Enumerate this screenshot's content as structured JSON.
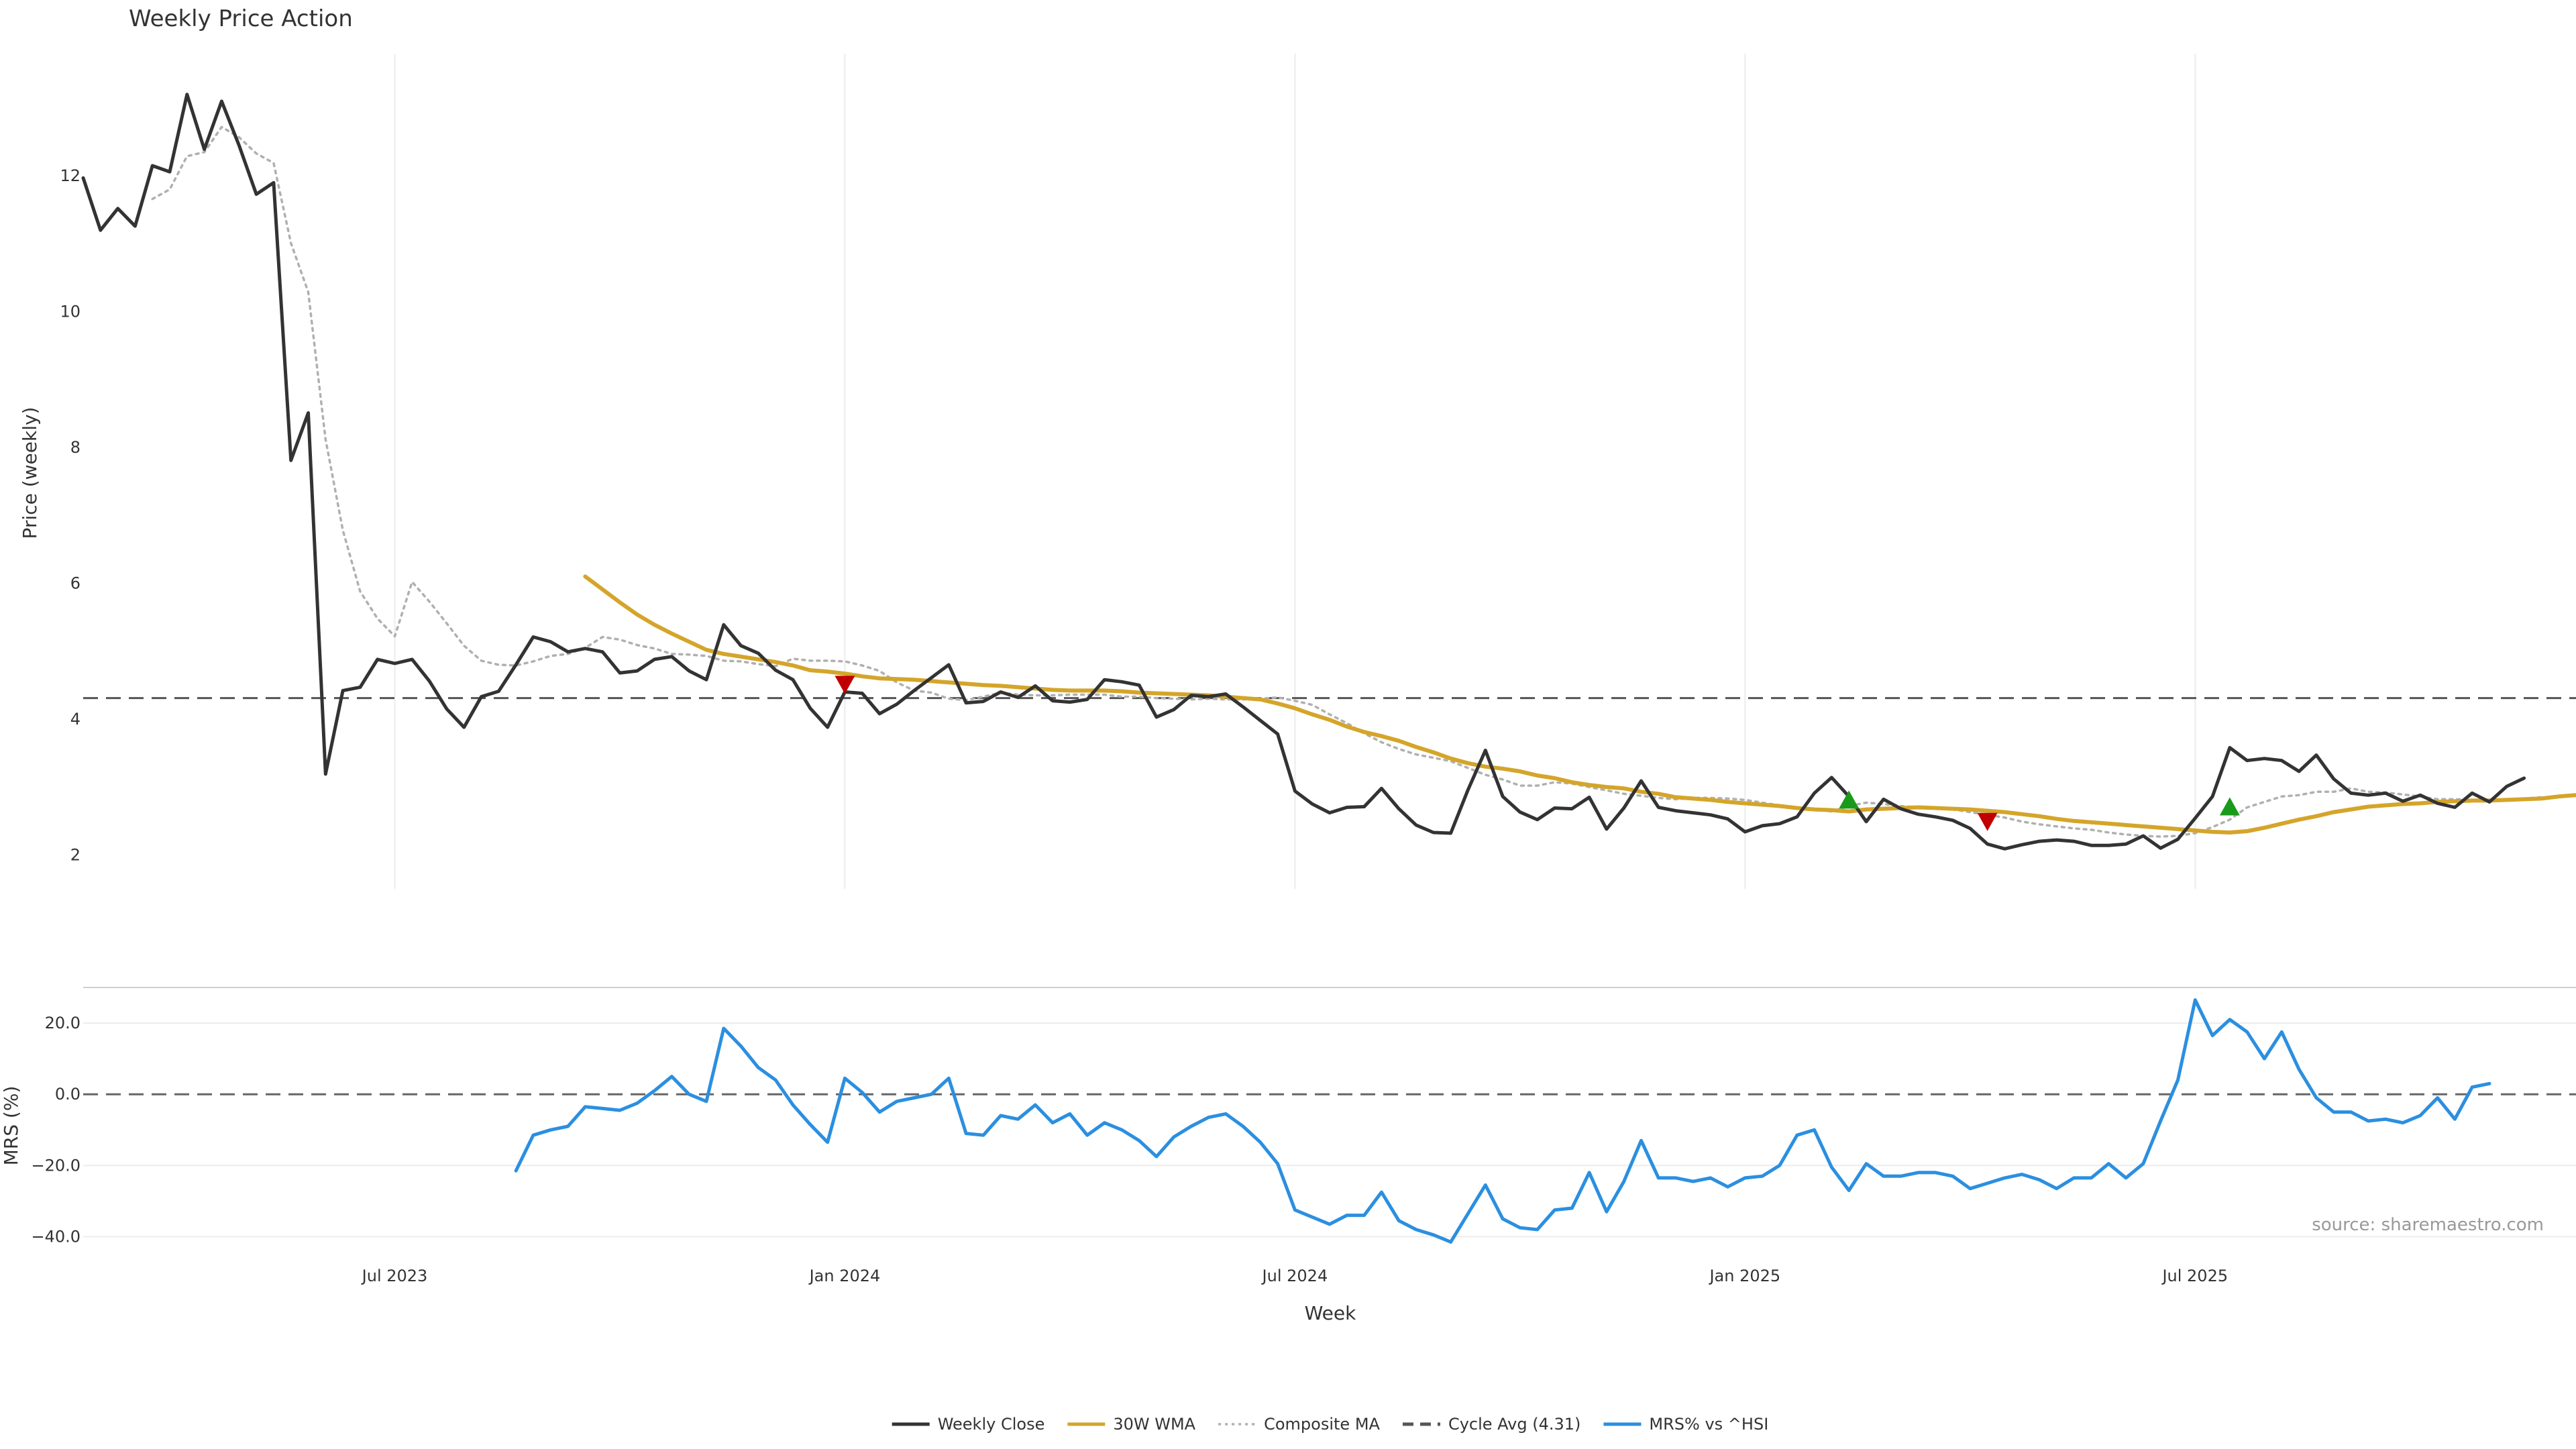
{
  "chart_data": {
    "type": "line",
    "title": "Weekly Price Action",
    "xlabel": "Week",
    "x_ticks": [
      "Jul 2023",
      "Jan 2024",
      "Jul 2024",
      "Jan 2025",
      "Jul 2025"
    ],
    "source": "source: sharemaestro.com",
    "price_panel": {
      "ylabel": "Price (weekly)",
      "ylim": [
        1.5,
        13.8
      ],
      "y_ticks": [
        "2",
        "4",
        "6",
        "8",
        "10",
        "12"
      ],
      "y_tick_values": [
        2,
        4,
        6,
        8,
        10,
        12
      ],
      "cycle_avg": 4.31,
      "series": [
        {
          "name": "Weekly Close",
          "color": "#333333",
          "start_week": 0,
          "values": [
            11.97,
            11.2,
            11.52,
            11.26,
            12.15,
            12.06,
            13.2,
            12.39,
            13.1,
            12.45,
            11.73,
            11.9,
            7.81,
            8.51,
            3.19,
            4.42,
            4.47,
            4.88,
            4.82,
            4.88,
            4.56,
            4.15,
            3.88,
            4.33,
            4.41,
            4.8,
            5.21,
            5.14,
            4.99,
            5.04,
            4.99,
            4.68,
            4.71,
            4.88,
            4.92,
            4.71,
            4.58,
            5.39,
            5.08,
            4.97,
            4.72,
            4.58,
            4.16,
            3.88,
            4.4,
            4.38,
            4.08,
            4.22,
            4.42,
            4.61,
            4.8,
            4.24,
            4.26,
            4.4,
            4.32,
            4.49,
            4.27,
            4.25,
            4.29,
            4.58,
            4.55,
            4.5,
            4.03,
            4.14,
            4.35,
            4.33,
            4.37,
            4.18,
            3.98,
            3.78,
            2.94,
            2.75,
            2.62,
            2.7,
            2.71,
            2.98,
            2.68,
            2.44,
            2.33,
            2.32,
            2.96,
            3.54,
            2.86,
            2.63,
            2.52,
            2.69,
            2.68,
            2.85,
            2.38,
            2.69,
            3.09,
            2.7,
            2.65,
            2.62,
            2.59,
            2.53,
            2.34,
            2.43,
            2.46,
            2.56,
            2.91,
            3.14,
            2.86,
            2.49,
            2.82,
            2.68,
            2.6,
            2.56,
            2.51,
            2.39,
            2.16,
            2.09,
            2.15,
            2.2,
            2.22,
            2.2,
            2.14,
            2.14,
            2.16,
            2.28,
            2.1,
            2.23,
            2.54,
            2.86,
            3.58,
            3.39,
            3.42,
            3.39,
            3.23,
            3.47,
            3.12,
            2.91,
            2.88,
            2.91,
            2.79,
            2.88,
            2.76,
            2.7,
            2.91,
            2.78,
            3.01,
            3.13
          ]
        },
        {
          "name": "30W WMA",
          "color": "#d4a52a",
          "start_week": 29,
          "values": [
            6.1,
            5.91,
            5.72,
            5.54,
            5.39,
            5.26,
            5.14,
            5.02,
            4.96,
            4.92,
            4.88,
            4.84,
            4.79,
            4.72,
            4.7,
            4.67,
            4.63,
            4.6,
            4.59,
            4.58,
            4.56,
            4.54,
            4.52,
            4.5,
            4.49,
            4.47,
            4.45,
            4.43,
            4.42,
            4.42,
            4.42,
            4.41,
            4.39,
            4.38,
            4.37,
            4.36,
            4.35,
            4.33,
            4.31,
            4.29,
            4.23,
            4.16,
            4.07,
            3.99,
            3.89,
            3.81,
            3.75,
            3.68,
            3.59,
            3.51,
            3.42,
            3.35,
            3.3,
            3.27,
            3.23,
            3.17,
            3.13,
            3.07,
            3.03,
            3,
            2.98,
            2.93,
            2.9,
            2.85,
            2.83,
            2.81,
            2.78,
            2.76,
            2.74,
            2.72,
            2.69,
            2.67,
            2.66,
            2.64,
            2.67,
            2.68,
            2.69,
            2.7,
            2.69,
            2.68,
            2.67,
            2.65,
            2.63,
            2.6,
            2.57,
            2.53,
            2.5,
            2.48,
            2.46,
            2.44,
            2.42,
            2.4,
            2.38,
            2.36,
            2.34,
            2.33,
            2.35,
            2.4,
            2.46,
            2.52,
            2.57,
            2.63,
            2.67,
            2.71,
            2.73,
            2.75,
            2.76,
            2.78,
            2.79,
            2.8,
            2.8,
            2.81,
            2.82,
            2.83,
            2.86,
            2.88
          ]
        },
        {
          "name": "Composite MA",
          "color": "#b0b0b0",
          "start_week": 4,
          "values": [
            11.66,
            11.8,
            12.29,
            12.35,
            12.72,
            12.57,
            12.33,
            12.19,
            11.01,
            10.29,
            8.12,
            6.78,
            5.88,
            5.48,
            5.22,
            6.02,
            5.73,
            5.41,
            5.08,
            4.86,
            4.8,
            4.79,
            4.85,
            4.93,
            4.96,
            5.05,
            5.21,
            5.17,
            5.09,
            5.04,
            4.96,
            4.95,
            4.93,
            4.86,
            4.85,
            4.81,
            4.78,
            4.89,
            4.86,
            4.86,
            4.85,
            4.79,
            4.71,
            4.54,
            4.42,
            4.39,
            4.3,
            4.28,
            4.33,
            4.39,
            4.36,
            4.35,
            4.35,
            4.36,
            4.36,
            4.36,
            4.33,
            4.33,
            4.31,
            4.3,
            4.29,
            4.3,
            4.29,
            4.29,
            4.3,
            4.32,
            4.27,
            4.21,
            4.07,
            3.94,
            3.79,
            3.66,
            3.56,
            3.48,
            3.43,
            3.38,
            3.28,
            3.18,
            3.11,
            3.02,
            3.02,
            3.07,
            3.05,
            3,
            2.95,
            2.9,
            2.87,
            2.84,
            2.82,
            2.84,
            2.84,
            2.83,
            2.81,
            2.77,
            2.73,
            2.69,
            2.67,
            2.64,
            2.72,
            2.77,
            2.75,
            2.72,
            2.7,
            2.69,
            2.67,
            2.63,
            2.59,
            2.55,
            2.49,
            2.45,
            2.42,
            2.39,
            2.37,
            2.33,
            2.3,
            2.28,
            2.27,
            2.28,
            2.32,
            2.41,
            2.52,
            2.7,
            2.78,
            2.86,
            2.88,
            2.93,
            2.93,
            2.98,
            2.93,
            2.92,
            2.89,
            2.86,
            2.82,
            2.82,
            2.81,
            2.8,
            2.81,
            2.83,
            2.85
          ]
        }
      ],
      "markers": [
        {
          "type": "sell",
          "week": 44,
          "value": 4.52,
          "color": "#c00000"
        },
        {
          "type": "buy",
          "week": 102,
          "value": 2.8,
          "color": "#1a9a1a"
        },
        {
          "type": "sell",
          "week": 110,
          "value": 2.5,
          "color": "#c00000"
        },
        {
          "type": "buy",
          "week": 124,
          "value": 2.7,
          "color": "#1a9a1a"
        }
      ]
    },
    "mrs_panel": {
      "ylabel": "MRS (%)",
      "ylim": [
        -45,
        30
      ],
      "y_ticks": [
        "20.0",
        "0.0",
        "−20.0",
        "−40.0"
      ],
      "y_tick_values": [
        20,
        0,
        -20,
        -40
      ],
      "series": {
        "name": "MRS% vs ^HSI",
        "color": "#2b8fe0",
        "start_week": 25,
        "values": [
          -21.5,
          -11.5,
          -10,
          -9,
          -3.5,
          -4,
          -4.5,
          -2.5,
          1,
          5,
          0,
          -2,
          18.5,
          13.5,
          7.5,
          4,
          -3,
          -8.5,
          -13.5,
          4.5,
          0.5,
          -5,
          -2,
          -1,
          0,
          4.5,
          -11,
          -11.5,
          -6,
          -7,
          -3,
          -8,
          -5.5,
          -11.5,
          -8,
          -10,
          -13,
          -17.5,
          -12,
          -9,
          -6.5,
          -5.5,
          -9,
          -13.5,
          -19.5,
          -32.5,
          -34.5,
          -36.5,
          -34,
          -34,
          -27.5,
          -35.5,
          -38,
          -39.5,
          -41.5,
          -33.5,
          -25.5,
          -35,
          -37.5,
          -38,
          -32.5,
          -32,
          -22,
          -33,
          -24.5,
          -13,
          -23.5,
          -23.5,
          -24.5,
          -23.5,
          -26,
          -23.5,
          -23,
          -20,
          -11.5,
          -10,
          -20.5,
          -27,
          -19.5,
          -23,
          -23,
          -22,
          -22,
          -23,
          -26.5,
          -25,
          -23.5,
          -22.5,
          -24,
          -26.5,
          -23.5,
          -23.5,
          -19.5,
          -23.5,
          -19.5,
          -7.5,
          4,
          26.5,
          16.5,
          21,
          17.5,
          10,
          17.5,
          7,
          -1,
          -5,
          -5,
          -7.5,
          -7,
          -8,
          -6,
          -1,
          -7,
          2,
          3
        ]
      }
    },
    "legend": {
      "placement": "bottom-center",
      "entries": [
        {
          "label": "Weekly Close",
          "style": "solid",
          "color": "#333333"
        },
        {
          "label": "30W WMA",
          "style": "solid",
          "color": "#d4a52a"
        },
        {
          "label": "Composite MA",
          "style": "dotted",
          "color": "#b0b0b0"
        },
        {
          "label": "Cycle Avg (4.31)",
          "style": "dashed",
          "color": "#555555"
        },
        {
          "label": "MRS% vs ^HSI",
          "style": "solid",
          "color": "#2b8fe0"
        }
      ]
    }
  }
}
